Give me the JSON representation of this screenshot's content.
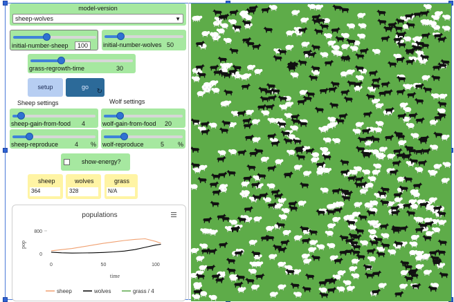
{
  "model_version": {
    "label": "model-version",
    "value": "sheep-wolves"
  },
  "sliders": {
    "initial_number_sheep": {
      "label": "initial-number-sheep",
      "value": "100",
      "fraction": 0.4
    },
    "initial_number_wolves": {
      "label": "initial-number-wolves",
      "value": "50",
      "fraction": 0.2
    },
    "grass_regrowth_time": {
      "label": "grass-regrowth-time",
      "value": "30",
      "fraction": 0.3
    },
    "sheep_gain_from_food": {
      "label": "sheep-gain-from-food",
      "value": "4",
      "fraction": 0.1
    },
    "wolf_gain_from_food": {
      "label": "wolf-gain-from-food",
      "value": "20",
      "fraction": 0.2
    },
    "sheep_reproduce": {
      "label": "sheep-reproduce",
      "value": "4",
      "unit": "%",
      "fraction": 0.2
    },
    "wolf_reproduce": {
      "label": "wolf-reproduce",
      "value": "5",
      "unit": "%",
      "fraction": 0.25
    }
  },
  "buttons": {
    "setup": "setup",
    "go": "go",
    "forever_symbol": "↻"
  },
  "section_notes": {
    "sheep": "Sheep settings",
    "wolf": "Wolf settings"
  },
  "switch": {
    "label": "show-energy?",
    "checked": false
  },
  "monitors": [
    {
      "label": "sheep",
      "value": "364"
    },
    {
      "label": "wolves",
      "value": "328"
    },
    {
      "label": "grass",
      "value": "N/A"
    }
  ],
  "plot_menu_icon": "menu-icon",
  "chart_data": {
    "type": "line",
    "title": "populations",
    "xlabel": "time",
    "ylabel": "pop",
    "xlim": [
      0,
      110
    ],
    "ylim": [
      0,
      800
    ],
    "x_ticks": [
      0,
      50,
      100
    ],
    "y_ticks": [
      0,
      800
    ],
    "series": [
      {
        "name": "sheep",
        "color": "#f0a070",
        "x": [
          0,
          10,
          20,
          30,
          40,
          50,
          60,
          70,
          80,
          90,
          100,
          105
        ],
        "y": [
          100,
          140,
          180,
          240,
          300,
          360,
          410,
          460,
          500,
          520,
          430,
          364
        ]
      },
      {
        "name": "wolves",
        "color": "#000000",
        "x": [
          0,
          10,
          20,
          30,
          40,
          50,
          60,
          70,
          80,
          90,
          100,
          105
        ],
        "y": [
          50,
          30,
          20,
          25,
          30,
          40,
          60,
          90,
          140,
          220,
          300,
          328
        ]
      },
      {
        "name": "grass / 4",
        "color": "#5aa84a",
        "x": [],
        "y": []
      }
    ]
  },
  "world": {
    "background": "#5eac49",
    "sheep_color": "#ffffff",
    "wolf_color": "#111111"
  }
}
